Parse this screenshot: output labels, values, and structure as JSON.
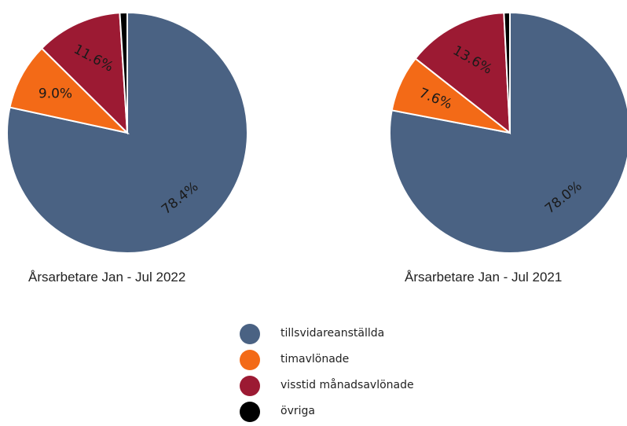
{
  "chart_data": [
    {
      "type": "pie",
      "title": "Årsarbetare Jan - Jul 2022",
      "slices": [
        {
          "name": "tillsvidareanställda",
          "value": 78.4,
          "label": "78.4%"
        },
        {
          "name": "timavlönade",
          "value": 9.0,
          "label": "9.0%"
        },
        {
          "name": "visstid månadsavlönade",
          "value": 11.6,
          "label": "11.6%"
        },
        {
          "name": "övriga",
          "value": 1.0,
          "label": ""
        }
      ]
    },
    {
      "type": "pie",
      "title": "Årsarbetare Jan - Jul 2021",
      "slices": [
        {
          "name": "tillsvidareanställda",
          "value": 78.0,
          "label": "78.0%"
        },
        {
          "name": "timavlönade",
          "value": 7.6,
          "label": "7.6%"
        },
        {
          "name": "visstid månadsavlönade",
          "value": 13.6,
          "label": "13.6%"
        },
        {
          "name": "övriga",
          "value": 0.8,
          "label": ""
        }
      ]
    }
  ],
  "legend": {
    "placement": "bottom-center",
    "items": [
      {
        "label": "tillsvidareanställda",
        "color": "#4a6283"
      },
      {
        "label": "timavlönade",
        "color": "#f36a17"
      },
      {
        "label": "visstid månadsavlönade",
        "color": "#9c1a33"
      },
      {
        "label": "övriga",
        "color": "#000000"
      }
    ]
  }
}
